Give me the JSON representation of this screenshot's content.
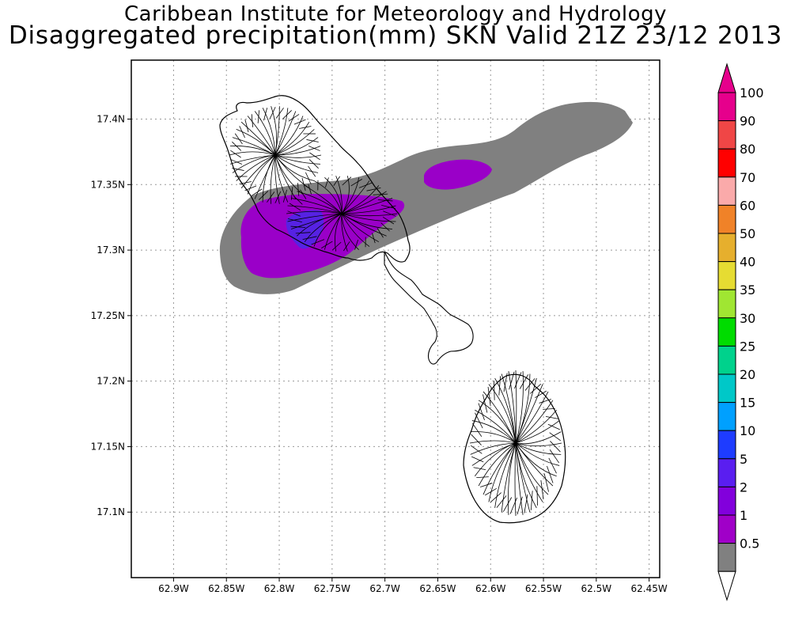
{
  "title": {
    "line1": "Caribbean Institute for Meteorology and Hydrology",
    "line2": "Disaggregated precipitation(mm) SKN Valid 21Z 23/12 2013"
  },
  "map": {
    "lon_range": [
      -62.94,
      -62.44
    ],
    "lat_range": [
      17.05,
      17.445
    ],
    "x_ticks": [
      {
        "value": -62.9,
        "label": "62.9W"
      },
      {
        "value": -62.85,
        "label": "62.85W"
      },
      {
        "value": -62.8,
        "label": "62.8W"
      },
      {
        "value": -62.75,
        "label": "62.75W"
      },
      {
        "value": -62.7,
        "label": "62.7W"
      },
      {
        "value": -62.65,
        "label": "62.65W"
      },
      {
        "value": -62.6,
        "label": "62.6W"
      },
      {
        "value": -62.55,
        "label": "62.55W"
      },
      {
        "value": -62.5,
        "label": "62.5W"
      },
      {
        "value": -62.45,
        "label": "62.45W"
      }
    ],
    "y_ticks": [
      {
        "value": 17.4,
        "label": "17.4N"
      },
      {
        "value": 17.35,
        "label": "17.35N"
      },
      {
        "value": 17.3,
        "label": "17.3N"
      },
      {
        "value": 17.25,
        "label": "17.25N"
      },
      {
        "value": 17.2,
        "label": "17.2N"
      },
      {
        "value": 17.15,
        "label": "17.15N"
      },
      {
        "value": 17.1,
        "label": "17.1N"
      }
    ],
    "grid": "dotted",
    "colors": {
      "band_0_5_1": "#808080",
      "band_1_2": "#9a00c8",
      "band_2_5": "#7a10d8",
      "band_5_10": "#4a28e8",
      "coastline": "#000000"
    }
  },
  "legend": {
    "placement": "right",
    "items": [
      {
        "label": "0.5",
        "color": "#808080"
      },
      {
        "label": "1",
        "color": "#a000c8"
      },
      {
        "label": "2",
        "color": "#8200dc"
      },
      {
        "label": "5",
        "color": "#5a1ef0"
      },
      {
        "label": "10",
        "color": "#1e3cff"
      },
      {
        "label": "15",
        "color": "#00a0ff"
      },
      {
        "label": "20",
        "color": "#00c8c8"
      },
      {
        "label": "25",
        "color": "#00d28c"
      },
      {
        "label": "30",
        "color": "#00dc00"
      },
      {
        "label": "35",
        "color": "#a0e632"
      },
      {
        "label": "40",
        "color": "#e6dc32"
      },
      {
        "label": "50",
        "color": "#e6af2d"
      },
      {
        "label": "60",
        "color": "#f08228"
      },
      {
        "label": "70",
        "color": "#faaaaa"
      },
      {
        "label": "80",
        "color": "#ff0000"
      },
      {
        "label": "90",
        "color": "#f04646"
      },
      {
        "label": "100",
        "color": "#e6008c"
      }
    ],
    "cap_top_color": "#e6008c",
    "cap_bottom_color": "#ffffff"
  }
}
